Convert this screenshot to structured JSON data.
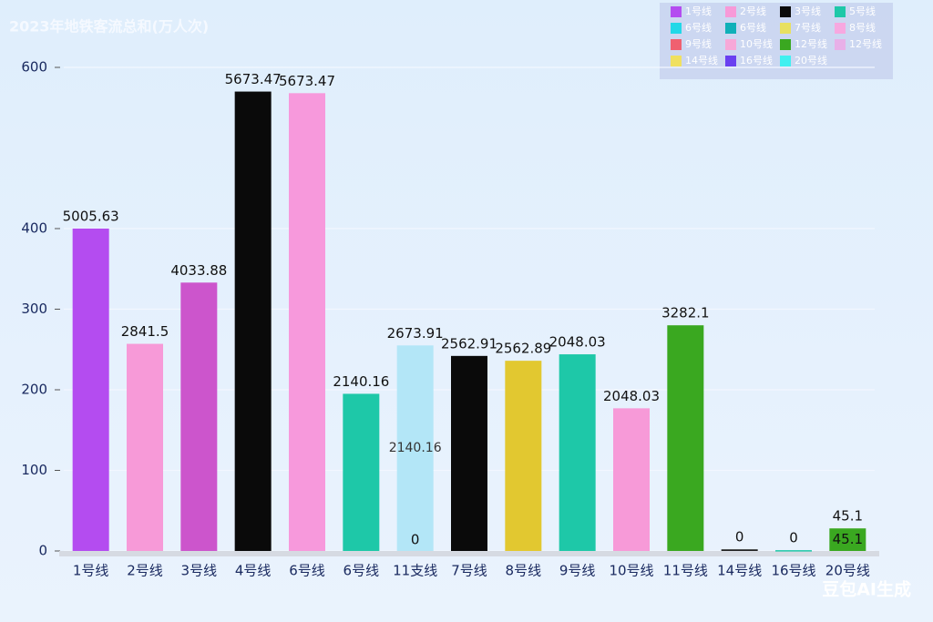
{
  "chart_data": {
    "type": "bar",
    "title": "2023年地铁客流总和(万人次)",
    "categories": [
      "1号线",
      "2号线",
      "3号线",
      "4号线",
      "6号线",
      "6号线",
      "11支线",
      "7号线",
      "8号线",
      "9号线",
      "10号线",
      "11号线",
      "14号线",
      "16号线",
      "20号线"
    ],
    "values": [
      400,
      257,
      333,
      570,
      568,
      195,
      255,
      242,
      236,
      244,
      177,
      280,
      2,
      1,
      28
    ],
    "colors": [
      "#b44cf0",
      "#f79ad8",
      "#cc55cc",
      "#0a0a0a",
      "#f799dc",
      "#1ec8a8",
      "#b3e6f7",
      "#0a0a0a",
      "#e2c830",
      "#1ec8a8",
      "#f79ad8",
      "#3aa820",
      "#222222",
      "#1ec8a8",
      "#3aa820"
    ],
    "annotations": [
      [
        "5005.63"
      ],
      [
        "2841.5"
      ],
      [
        "4033.88"
      ],
      [
        "5673.47"
      ],
      [
        "5673.47"
      ],
      [
        "2140.16"
      ],
      [
        "2673.91",
        "2140.16",
        "0"
      ],
      [
        "2562.91"
      ],
      [
        "2562.89"
      ],
      [
        "2048.03"
      ],
      [
        "2048.03"
      ],
      [
        "3282.1"
      ],
      [
        "0"
      ],
      [
        "0"
      ],
      [
        "45.1",
        "45.1"
      ]
    ],
    "ylim": [
      0,
      600
    ],
    "yticks": [
      0,
      100,
      200,
      300,
      400,
      600
    ],
    "grid": true,
    "legend": [
      {
        "name": "1号线",
        "color": "#b44cf0"
      },
      {
        "name": "2号线",
        "color": "#f79ad8"
      },
      {
        "name": "3号线",
        "color": "#0a0a0a"
      },
      {
        "name": "5号线",
        "color": "#1ec8a8"
      },
      {
        "name": "6号线",
        "color": "#22d8e8"
      },
      {
        "name": "6号线",
        "color": "#10b0b8"
      },
      {
        "name": "7号线",
        "color": "#e8e060"
      },
      {
        "name": "8号线",
        "color": "#f7a8e0"
      },
      {
        "name": "9号线",
        "color": "#f06070"
      },
      {
        "name": "10号线",
        "color": "#f7a8d8"
      },
      {
        "name": "12号线",
        "color": "#3aa820"
      },
      {
        "name": "12号线",
        "color": "#e8b0e8"
      },
      {
        "name": "14号线",
        "color": "#f0e060"
      },
      {
        "name": "16号线",
        "color": "#6a40f0"
      },
      {
        "name": "20号线",
        "color": "#40f0f0"
      }
    ],
    "watermark": "豆包AI生成"
  }
}
